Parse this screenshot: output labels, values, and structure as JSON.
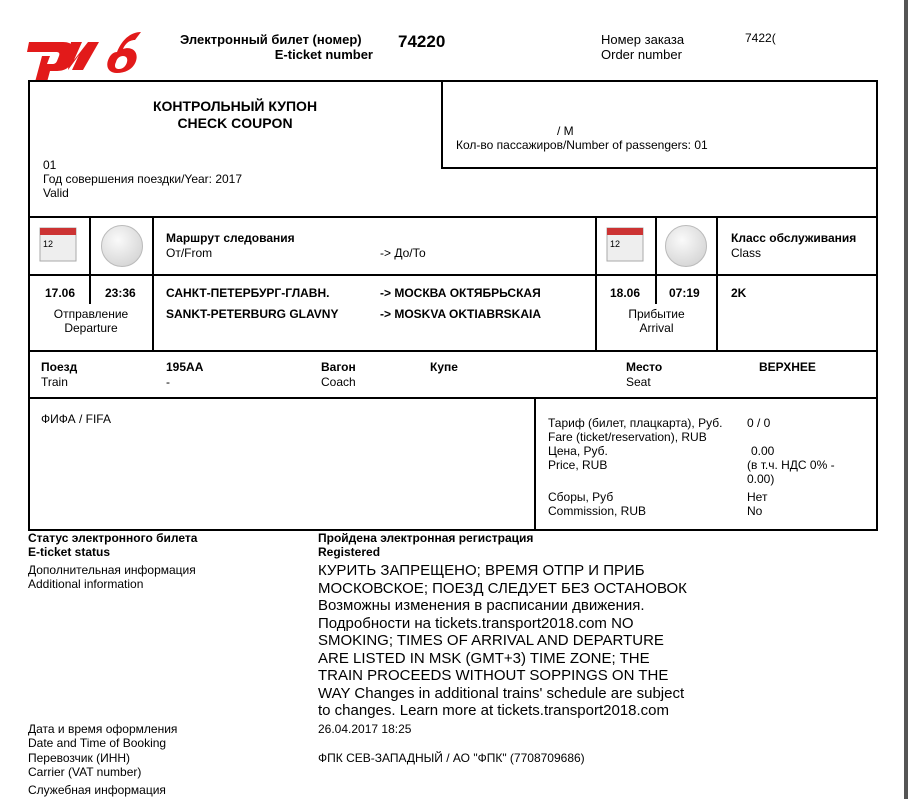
{
  "header": {
    "logo_text": "РЖД",
    "eticket_label_ru": "Электронный билет (номер)",
    "eticket_label_en": "E-ticket number",
    "eticket_number": "74220",
    "order_label_ru": "Номер заказа",
    "order_label_en": "Order number",
    "order_number": "7422("
  },
  "coupon": {
    "title_ru": "КОНТРОЛЬНЫЙ КУПОН",
    "title_en": "CHECK COUPON",
    "passenger_code": "01",
    "year": "Год совершения поездки/Year: 2017",
    "validity": "Valid",
    "gender": "/ M",
    "passengers": "Кол-во пассажиров/Number of passengers: 01"
  },
  "route": {
    "label_ru": "Маршрут следования",
    "from_label": "От/From",
    "to_label": "-> До/То",
    "class_ru": "Класс обслуживания",
    "class_en": "Class",
    "dep_date": "17.06",
    "dep_time": "23:36",
    "dep_ru": "Отправление",
    "dep_en": "Departure",
    "from_ru": "САНКТ-ПЕТЕРБУРГ-ГЛАВН.",
    "from_en": "SANKT-PETERBURG GLAVNY",
    "to_ru": "-> МОСКВА ОКТЯБРЬСКАЯ",
    "to_en": "-> MOSKVA OKTIABRSKAIA",
    "arr_date": "18.06",
    "arr_time": "07:19",
    "arr_ru": "Прибытие",
    "arr_en": "Arrival",
    "class_value": "2K"
  },
  "train": {
    "train_ru": "Поезд",
    "train_en": "Train",
    "train_no": "195AA",
    "train_sub": "-",
    "coach_ru": "Вагон",
    "coach_en": "Coach",
    "coach_type": "Купе",
    "seat_ru": "Место",
    "seat_en": "Seat",
    "seat_value": "ВЕРХНЕЕ"
  },
  "fare": {
    "event": "ФИФА / FIFA",
    "tariff_ru": "Тариф (билет, плацкарта), Руб.",
    "tariff_en": "Fare (ticket/reservation), RUB",
    "tariff_value": "0 / 0",
    "price_ru": "Цена, Руб.",
    "price_en": "Price, RUB",
    "price_value": "0.00",
    "vat_1": "(в т.ч. НДС  0% -",
    "vat_2": "0.00)",
    "fees_ru": "Сборы, Руб",
    "fees_en": "Commission, RUB",
    "fees_ru_value": "Нет",
    "fees_en_value": "No"
  },
  "info": {
    "status_ru": "Статус электронного билета",
    "status_en": "E-ticket status",
    "status_value_ru": "Пройдена электронная регистрация",
    "status_value_en": "Registered",
    "add_ru": "Дополнительная информация",
    "add_en": "Additional information",
    "add_lines": [
      "КУРИТЬ ЗАПРЕЩЕНО; ВРЕМЯ ОТПР И ПРИБ",
      "МОСКОВСКОЕ; ПОЕЗД СЛЕДУЕТ БЕЗ ОСТАНОВОК",
      "Возможны изменения в расписании движения.",
      "Подробности на tickets.transport2018.com NO",
      "SMOKING; TIMES OF ARRIVAL AND DEPARTURE",
      "ARE LISTED IN MSK (GMT+3) TIME ZONE; THE",
      "TRAIN PROCEEDS WITHOUT SOPPINGS ON THE",
      "WAY Changes in additional trains' schedule are subject",
      "to changes. Learn more at tickets.transport2018.com"
    ],
    "booking_ru": "Дата и время оформления",
    "booking_en": "Date and Time of Booking",
    "booking_value": "26.04.2017 18:25",
    "carrier_ru": "Перевозчик (ИНН)",
    "carrier_en": "Carrier (VAT number)",
    "carrier_value": "ФПК СЕВ-ЗАПАДНЫЙ / АО \"ФПК\" (7708709686)",
    "service_ru": "Служебная информация"
  },
  "colors": {
    "logo": "#e21a1a"
  }
}
